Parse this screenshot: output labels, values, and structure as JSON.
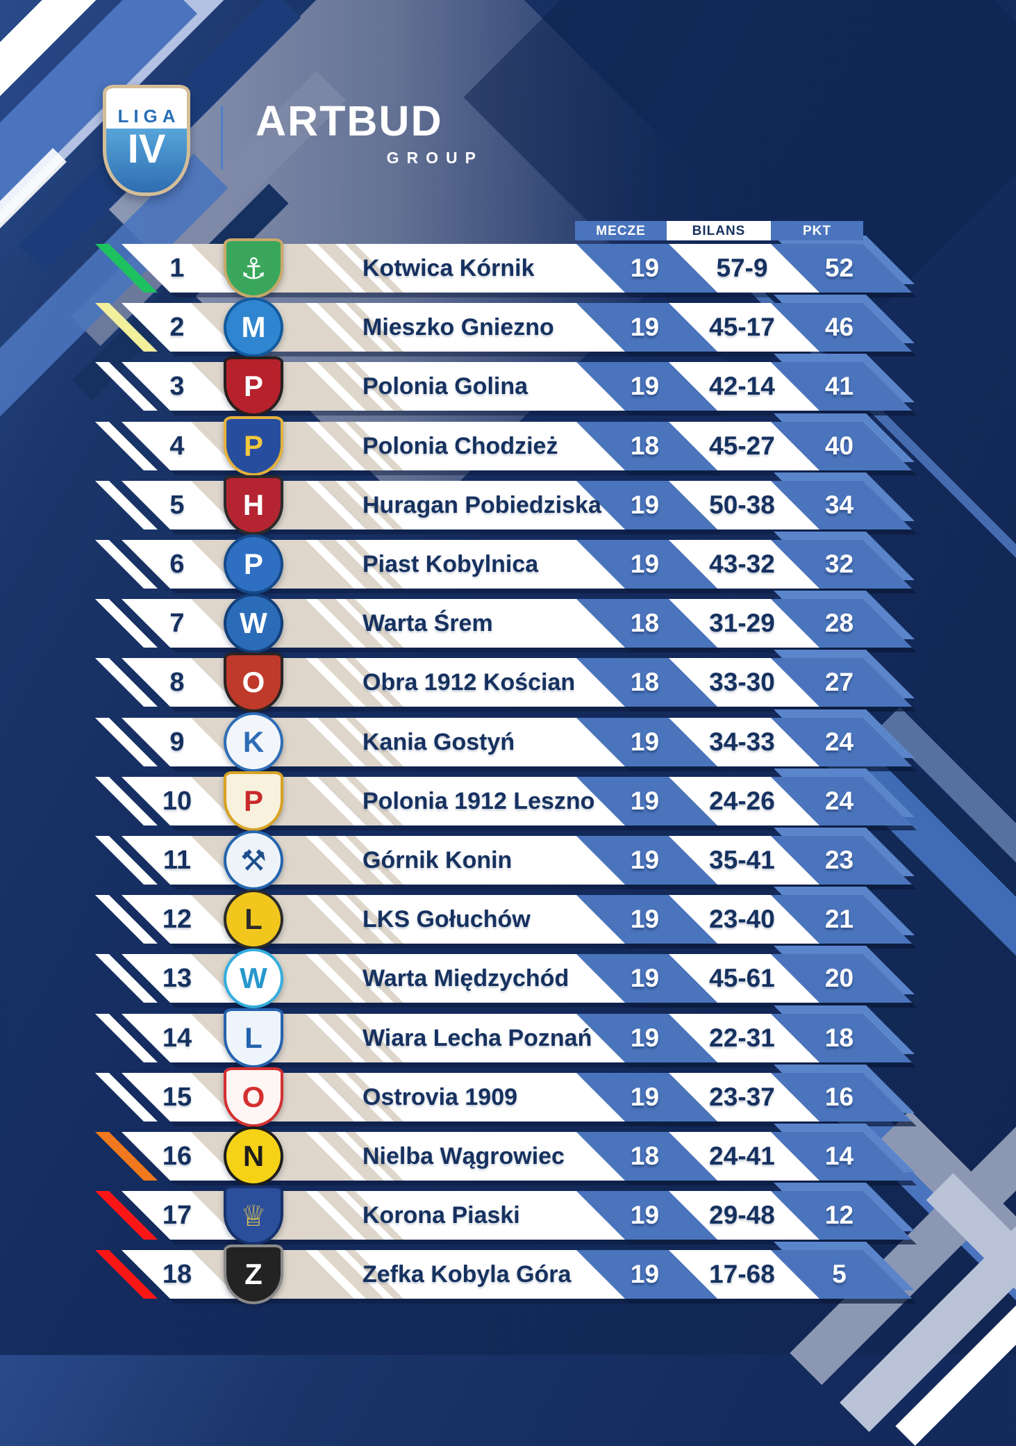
{
  "header": {
    "badge": {
      "top": "LIGA",
      "bottom": "IV"
    },
    "sponsor": {
      "name": "ARTBUD",
      "sub": "GROUP"
    }
  },
  "colors": {
    "page_navy": "#142b5e",
    "cell_blue": "#4a74bc",
    "navy_text": "#16315f",
    "row_white": "#ffffff",
    "beige_band": "#ded6ca",
    "promotion_green": "#1ec160",
    "playoff_yellow": "#f2ef9d",
    "neutral_white": "#ffffff",
    "warning_orange": "#f1791d",
    "relegation_red": "#fe1616"
  },
  "table": {
    "columns": [
      {
        "key": "mecze",
        "label": "MECZE"
      },
      {
        "key": "bilans",
        "label": "BILANS"
      },
      {
        "key": "pkt",
        "label": "PKT"
      }
    ],
    "rows": [
      {
        "pos": "1",
        "team": "Kotwica Kórnik",
        "mecze": "19",
        "bilans": "57-9",
        "pkt": "52",
        "stripe": "#1ec160",
        "crest": {
          "shape": "shield",
          "bg": "#3aa65c",
          "border": "#c9a96a",
          "fg": "#ffffff",
          "glyph": "⚓"
        }
      },
      {
        "pos": "2",
        "team": "Mieszko Gniezno",
        "mecze": "19",
        "bilans": "45-17",
        "pkt": "46",
        "stripe": "#f2ef9d",
        "crest": {
          "shape": "circle",
          "bg": "#2f85cf",
          "border": "#125a9e",
          "fg": "#ffffff",
          "glyph": "M"
        }
      },
      {
        "pos": "3",
        "team": "Polonia Golina",
        "mecze": "19",
        "bilans": "42-14",
        "pkt": "41",
        "stripe": "#ffffff",
        "crest": {
          "shape": "shield",
          "bg": "#b6212b",
          "border": "#26201f",
          "fg": "#ffffff",
          "glyph": "P"
        }
      },
      {
        "pos": "4",
        "team": "Polonia Chodzież",
        "mecze": "18",
        "bilans": "45-27",
        "pkt": "40",
        "stripe": "#ffffff",
        "crest": {
          "shape": "shield",
          "bg": "#274e9e",
          "border": "#e4b23c",
          "fg": "#f3c83e",
          "glyph": "P"
        }
      },
      {
        "pos": "5",
        "team": "Huragan Pobiedziska",
        "mecze": "19",
        "bilans": "50-38",
        "pkt": "34",
        "stripe": "#ffffff",
        "crest": {
          "shape": "shield",
          "bg": "#b42531",
          "border": "#2b2b2b",
          "fg": "#ffffff",
          "glyph": "H"
        }
      },
      {
        "pos": "6",
        "team": "Piast Kobylnica",
        "mecze": "19",
        "bilans": "43-32",
        "pkt": "32",
        "stripe": "#ffffff",
        "crest": {
          "shape": "circle",
          "bg": "#2e6fc2",
          "border": "#154a8a",
          "fg": "#ffffff",
          "glyph": "P"
        }
      },
      {
        "pos": "7",
        "team": "Warta Śrem",
        "mecze": "18",
        "bilans": "31-29",
        "pkt": "28",
        "stripe": "#ffffff",
        "crest": {
          "shape": "circle",
          "bg": "#2b6cb8",
          "border": "#123f7a",
          "fg": "#ffffff",
          "glyph": "W"
        }
      },
      {
        "pos": "8",
        "team": "Obra 1912 Kościan",
        "mecze": "18",
        "bilans": "33-30",
        "pkt": "27",
        "stripe": "#ffffff",
        "crest": {
          "shape": "shield",
          "bg": "#c03a2b",
          "border": "#2b2424",
          "fg": "#ffffff",
          "glyph": "O"
        }
      },
      {
        "pos": "9",
        "team": "Kania Gostyń",
        "mecze": "19",
        "bilans": "34-33",
        "pkt": "24",
        "stripe": "#ffffff",
        "crest": {
          "shape": "circle",
          "bg": "#f2f6fb",
          "border": "#2e6db6",
          "fg": "#2e6db6",
          "glyph": "K"
        }
      },
      {
        "pos": "10",
        "team": "Polonia 1912 Leszno",
        "mecze": "19",
        "bilans": "24-26",
        "pkt": "24",
        "stripe": "#ffffff",
        "crest": {
          "shape": "shield",
          "bg": "#f7f1dd",
          "border": "#d8a224",
          "fg": "#c92a2a",
          "glyph": "P"
        }
      },
      {
        "pos": "11",
        "team": "Górnik Konin",
        "mecze": "19",
        "bilans": "35-41",
        "pkt": "23",
        "stripe": "#ffffff",
        "crest": {
          "shape": "circle",
          "bg": "#eef3fa",
          "border": "#2465ae",
          "fg": "#1d4f8c",
          "glyph": "⚒"
        }
      },
      {
        "pos": "12",
        "team": "LKS Gołuchów",
        "mecze": "19",
        "bilans": "23-40",
        "pkt": "21",
        "stripe": "#ffffff",
        "crest": {
          "shape": "circle",
          "bg": "#f2c71d",
          "border": "#2b2b2b",
          "fg": "#2b2b2b",
          "glyph": "L"
        }
      },
      {
        "pos": "13",
        "team": "Warta Międzychód",
        "mecze": "19",
        "bilans": "45-61",
        "pkt": "20",
        "stripe": "#ffffff",
        "crest": {
          "shape": "circle",
          "bg": "#ffffff",
          "border": "#35aede",
          "fg": "#2798cc",
          "glyph": "W"
        }
      },
      {
        "pos": "14",
        "team": "Wiara Lecha Poznań",
        "mecze": "19",
        "bilans": "22-31",
        "pkt": "18",
        "stripe": "#ffffff",
        "crest": {
          "shape": "shield",
          "bg": "#eef4fb",
          "border": "#2563ae",
          "fg": "#2563ae",
          "glyph": "L"
        }
      },
      {
        "pos": "15",
        "team": "Ostrovia 1909",
        "mecze": "19",
        "bilans": "23-37",
        "pkt": "16",
        "stripe": "#ffffff",
        "crest": {
          "shape": "shield",
          "bg": "#fdf6f4",
          "border": "#d43030",
          "fg": "#d43030",
          "glyph": "O"
        }
      },
      {
        "pos": "16",
        "team": "Nielba Wągrowiec",
        "mecze": "18",
        "bilans": "24-41",
        "pkt": "14",
        "stripe": "#f1791d",
        "crest": {
          "shape": "circle",
          "bg": "#f5d216",
          "border": "#1d1d1d",
          "fg": "#1d1d1d",
          "glyph": "N"
        }
      },
      {
        "pos": "17",
        "team": "Korona Piaski",
        "mecze": "19",
        "bilans": "29-48",
        "pkt": "12",
        "stripe": "#fe1616",
        "crest": {
          "shape": "shield",
          "bg": "#2b4f9b",
          "border": "#17316b",
          "fg": "#e8c94f",
          "glyph": "♕"
        }
      },
      {
        "pos": "18",
        "team": "Zefka Kobyla Góra",
        "mecze": "19",
        "bilans": "17-68",
        "pkt": "5",
        "stripe": "#fe1616",
        "crest": {
          "shape": "shield",
          "bg": "#232323",
          "border": "#8a8a8a",
          "fg": "#ffffff",
          "glyph": "Z"
        }
      }
    ]
  }
}
